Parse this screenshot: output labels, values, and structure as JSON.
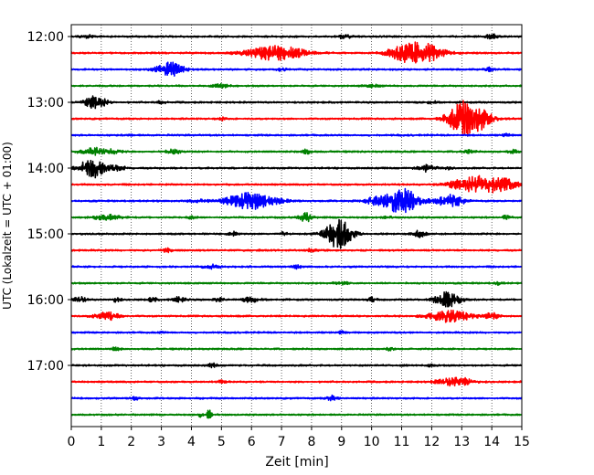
{
  "chart_data": {
    "type": "line",
    "title": "",
    "xlabel": "Zeit  [min]",
    "ylabel": "UTC (Lokalzeit = UTC + 01:00)",
    "xlim": [
      0,
      15
    ],
    "x_ticks": [
      "0",
      "1",
      "2",
      "3",
      "4",
      "5",
      "6",
      "7",
      "8",
      "9",
      "10",
      "11",
      "12",
      "13",
      "14",
      "15"
    ],
    "y_ticks": [
      {
        "label": "12:00",
        "trace": 0
      },
      {
        "label": "13:00",
        "trace": 4
      },
      {
        "label": "14:00",
        "trace": 8
      },
      {
        "label": "15:00",
        "trace": 12
      },
      {
        "label": "16:00",
        "trace": 16
      },
      {
        "label": "17:00",
        "trace": 20
      }
    ],
    "grid": "vertical dotted",
    "trace_interval_min": 15,
    "colors": [
      "#000000",
      "#ff0000",
      "#0000ff",
      "#008000"
    ],
    "traces": [
      {
        "start": "12:00",
        "color": "#000000",
        "noise": 0.12,
        "events": [
          [
            0.5,
            0.8,
            0.15
          ],
          [
            9.1,
            0.7,
            0.15
          ],
          [
            14.0,
            0.8,
            0.15
          ]
        ]
      },
      {
        "start": "12:15",
        "color": "#ff0000",
        "noise": 0.12,
        "events": [
          [
            6.8,
            2.5,
            0.7
          ],
          [
            11.6,
            4.0,
            0.5
          ],
          [
            10.9,
            1.2,
            0.3
          ]
        ]
      },
      {
        "start": "12:30",
        "color": "#0000ff",
        "noise": 0.12,
        "events": [
          [
            3.3,
            2.5,
            0.3
          ],
          [
            7.0,
            0.6,
            0.1
          ],
          [
            13.9,
            0.6,
            0.1
          ]
        ]
      },
      {
        "start": "12:45",
        "color": "#008000",
        "noise": 0.1,
        "events": [
          [
            5.0,
            0.6,
            0.2
          ],
          [
            10.0,
            0.5,
            0.2
          ]
        ]
      },
      {
        "start": "13:00",
        "color": "#000000",
        "noise": 0.12,
        "events": [
          [
            0.8,
            2.5,
            0.25
          ],
          [
            3.0,
            0.6,
            0.1
          ],
          [
            12.0,
            0.6,
            0.1
          ]
        ]
      },
      {
        "start": "13:15",
        "color": "#ff0000",
        "noise": 0.12,
        "events": [
          [
            13.3,
            6.0,
            0.4
          ],
          [
            12.8,
            2.0,
            0.3
          ],
          [
            5.0,
            0.5,
            0.1
          ]
        ]
      },
      {
        "start": "13:30",
        "color": "#0000ff",
        "noise": 0.12,
        "events": [
          [
            14.5,
            0.5,
            0.1
          ],
          [
            2.0,
            0.4,
            0.1
          ]
        ]
      },
      {
        "start": "13:45",
        "color": "#008000",
        "noise": 0.1,
        "events": [
          [
            0.7,
            1.0,
            0.3
          ],
          [
            1.2,
            0.8,
            0.3
          ],
          [
            3.4,
            0.9,
            0.15
          ],
          [
            7.8,
            0.8,
            0.15
          ],
          [
            13.2,
            0.7,
            0.15
          ],
          [
            14.7,
            0.6,
            0.15
          ]
        ]
      },
      {
        "start": "14:00",
        "color": "#000000",
        "noise": 0.12,
        "events": [
          [
            0.7,
            3.5,
            0.3
          ],
          [
            1.5,
            1.0,
            0.2
          ],
          [
            11.8,
            1.2,
            0.2
          ],
          [
            12.6,
            0.6,
            0.1
          ]
        ]
      },
      {
        "start": "14:15",
        "color": "#ff0000",
        "noise": 0.12,
        "events": [
          [
            13.6,
            3.0,
            0.5
          ],
          [
            14.5,
            1.4,
            0.3
          ],
          [
            12.8,
            0.8,
            0.3
          ]
        ]
      },
      {
        "start": "14:30",
        "color": "#0000ff",
        "noise": 0.12,
        "events": [
          [
            6.0,
            2.8,
            0.6
          ],
          [
            11.0,
            4.5,
            0.4
          ],
          [
            12.6,
            2.2,
            0.3
          ],
          [
            10.1,
            1.0,
            0.3
          ],
          [
            4.2,
            0.6,
            0.2
          ]
        ]
      },
      {
        "start": "14:45",
        "color": "#008000",
        "noise": 0.12,
        "events": [
          [
            1.2,
            0.9,
            0.3
          ],
          [
            4.0,
            0.6,
            0.1
          ],
          [
            7.8,
            1.5,
            0.15
          ],
          [
            10.5,
            0.6,
            0.1
          ],
          [
            14.5,
            0.7,
            0.1
          ]
        ]
      },
      {
        "start": "15:00",
        "color": "#000000",
        "noise": 0.12,
        "events": [
          [
            8.9,
            5.0,
            0.3
          ],
          [
            11.6,
            1.2,
            0.15
          ],
          [
            5.4,
            0.8,
            0.1
          ],
          [
            7.1,
            0.6,
            0.1
          ]
        ]
      },
      {
        "start": "15:15",
        "color": "#ff0000",
        "noise": 0.12,
        "events": [
          [
            3.2,
            0.9,
            0.1
          ],
          [
            8.0,
            0.6,
            0.1
          ]
        ]
      },
      {
        "start": "15:30",
        "color": "#0000ff",
        "noise": 0.12,
        "events": [
          [
            4.7,
            0.7,
            0.2
          ],
          [
            7.5,
            0.6,
            0.1
          ]
        ]
      },
      {
        "start": "15:45",
        "color": "#008000",
        "noise": 0.1,
        "events": [
          [
            9.0,
            0.7,
            0.15
          ],
          [
            14.2,
            0.5,
            0.1
          ]
        ]
      },
      {
        "start": "16:00",
        "color": "#000000",
        "noise": 0.12,
        "events": [
          [
            0.3,
            1.0,
            0.15
          ],
          [
            1.5,
            0.9,
            0.1
          ],
          [
            2.7,
            0.8,
            0.1
          ],
          [
            3.6,
            1.1,
            0.15
          ],
          [
            4.9,
            0.8,
            0.1
          ],
          [
            6.0,
            0.9,
            0.2
          ],
          [
            12.5,
            2.6,
            0.3
          ],
          [
            10.0,
            0.7,
            0.1
          ]
        ]
      },
      {
        "start": "16:15",
        "color": "#ff0000",
        "noise": 0.12,
        "events": [
          [
            1.2,
            1.4,
            0.3
          ],
          [
            12.6,
            2.0,
            0.5
          ],
          [
            14.0,
            1.0,
            0.2
          ]
        ]
      },
      {
        "start": "16:30",
        "color": "#0000ff",
        "noise": 0.1,
        "events": [
          [
            3.0,
            0.5,
            0.1
          ],
          [
            9.0,
            0.5,
            0.1
          ]
        ]
      },
      {
        "start": "16:45",
        "color": "#008000",
        "noise": 0.1,
        "events": [
          [
            1.5,
            0.7,
            0.1
          ],
          [
            10.6,
            0.7,
            0.1
          ]
        ]
      },
      {
        "start": "17:00",
        "color": "#000000",
        "noise": 0.12,
        "events": [
          [
            4.7,
            0.7,
            0.1
          ],
          [
            12.0,
            0.5,
            0.1
          ]
        ]
      },
      {
        "start": "17:15",
        "color": "#ff0000",
        "noise": 0.12,
        "events": [
          [
            12.8,
            1.6,
            0.4
          ],
          [
            5.0,
            0.5,
            0.1
          ]
        ]
      },
      {
        "start": "17:30",
        "color": "#0000ff",
        "noise": 0.1,
        "events": [
          [
            8.7,
            1.0,
            0.15
          ],
          [
            2.1,
            0.6,
            0.1
          ]
        ]
      },
      {
        "start": "17:45",
        "color": "#008000",
        "noise": 0.1,
        "events": [
          [
            4.6,
            2.2,
            0.06
          ],
          [
            4.3,
            0.8,
            0.05
          ]
        ]
      }
    ]
  }
}
